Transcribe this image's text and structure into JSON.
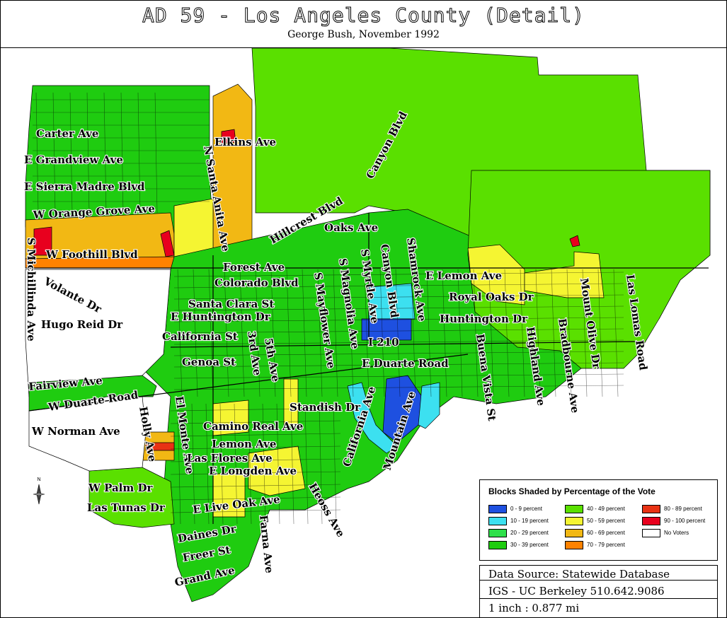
{
  "header": {
    "title": "AD 59 - Los Angeles County (Detail)",
    "subtitle": "George Bush, November 1992"
  },
  "colors": {
    "c0_9": "#1e50e0",
    "c10_19": "#3ce0f0",
    "c20_29": "#2ee04a",
    "c30_39": "#1fcc10",
    "c40_49": "#5ae000",
    "c50_59": "#f5f532",
    "c60_69": "#f2b814",
    "c70_79": "#ff8200",
    "c80_89": "#e83214",
    "c90_100": "#e8001e",
    "no_voters": "#ffffff"
  },
  "streets": [
    {
      "name": "Carter Ave"
    },
    {
      "name": "E Grandview Ave"
    },
    {
      "name": "E Sierra Madre Blvd"
    },
    {
      "name": "W Orange Grove Ave"
    },
    {
      "name": "S Michillinda Ave"
    },
    {
      "name": "W Foothill Blvd"
    },
    {
      "name": "Volante Dr"
    },
    {
      "name": "Hugo Reid Dr"
    },
    {
      "name": "Fairview Ave"
    },
    {
      "name": "W Duarte Road"
    },
    {
      "name": "W Norman Ave"
    },
    {
      "name": "Holly Ave"
    },
    {
      "name": "El Monte Ave"
    },
    {
      "name": "W Palm Dr"
    },
    {
      "name": "Las Tunas Dr"
    },
    {
      "name": "Elkins Ave"
    },
    {
      "name": "N Santa Anita Ave"
    },
    {
      "name": "Canyon Blvd"
    },
    {
      "name": "Hillcrest Blvd"
    },
    {
      "name": "Oaks Ave"
    },
    {
      "name": "Forest Ave"
    },
    {
      "name": "Colorado Blvd"
    },
    {
      "name": "Santa Clara St"
    },
    {
      "name": "E Huntington Dr"
    },
    {
      "name": "California St"
    },
    {
      "name": "Genoa St"
    },
    {
      "name": "3rd Ave"
    },
    {
      "name": "5th Ave"
    },
    {
      "name": "S Mayflower Ave"
    },
    {
      "name": "S Magnolia Ave"
    },
    {
      "name": "S Myrtle Ave"
    },
    {
      "name": "Canyon Blvd"
    },
    {
      "name": "Shamrock Ave"
    },
    {
      "name": "E Lemon Ave"
    },
    {
      "name": "Royal Oaks Dr"
    },
    {
      "name": "Mount Olive Dr"
    },
    {
      "name": "Las Lomas Road"
    },
    {
      "name": "Huntington Dr"
    },
    {
      "name": "I 210"
    },
    {
      "name": "E Duarte Road"
    },
    {
      "name": "Buena Vista St"
    },
    {
      "name": "Highland Ave"
    },
    {
      "name": "Bradbourne Ave"
    },
    {
      "name": "Standish Dr"
    },
    {
      "name": "California Ave"
    },
    {
      "name": "Mountain Ave"
    },
    {
      "name": "Camino Real Ave"
    },
    {
      "name": "Lemon Ave"
    },
    {
      "name": "Las Flores Ave"
    },
    {
      "name": "E Longden Ave"
    },
    {
      "name": "E Live Oak Ave"
    },
    {
      "name": "Heoss Ave"
    },
    {
      "name": "Daines Dr"
    },
    {
      "name": "Farna Ave"
    },
    {
      "name": "Freer St"
    },
    {
      "name": "Grand Ave"
    }
  ],
  "north": {
    "label": "N"
  },
  "legend": {
    "title": "Blocks Shaded by Percentage of the Vote",
    "items": [
      {
        "label": "0 - 9 percent",
        "color": "#1e50e0"
      },
      {
        "label": "10 - 19 percent",
        "color": "#3ce0f0"
      },
      {
        "label": "20 - 29 percent",
        "color": "#2ee04a"
      },
      {
        "label": "30 - 39 percent",
        "color": "#1fcc10"
      },
      {
        "label": "40 - 49 percent",
        "color": "#5ae000"
      },
      {
        "label": "50 - 59 percent",
        "color": "#f5f532"
      },
      {
        "label": "60 - 69 percent",
        "color": "#f2b814"
      },
      {
        "label": "70 - 79 percent",
        "color": "#ff8200"
      },
      {
        "label": "80 - 89 percent",
        "color": "#e83214"
      },
      {
        "label": "90 - 100 percent",
        "color": "#e8001e"
      },
      {
        "label": "No Voters",
        "color": "#ffffff"
      }
    ]
  },
  "source": {
    "line1": "Data Source: Statewide Database",
    "line2": "IGS - UC Berkeley 510.642.9086",
    "line3": "1 inch : 0.877 mi"
  }
}
